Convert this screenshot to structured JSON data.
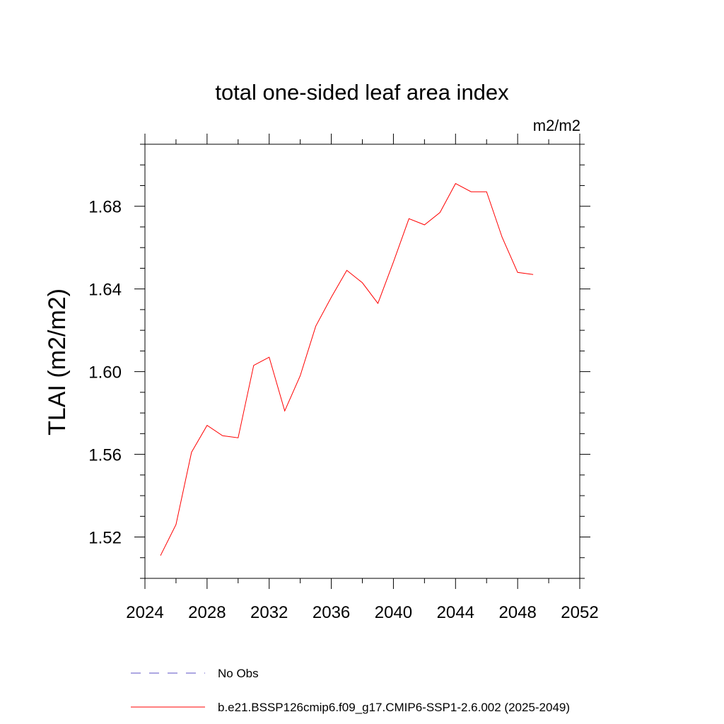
{
  "chart_data": {
    "type": "line",
    "title": "total one-sided leaf area index",
    "units_label": "m2/m2",
    "ylabel": "TLAI  (m2/m2)",
    "xlabel": "",
    "xlim": [
      2024,
      2052
    ],
    "ylim": [
      1.5,
      1.71
    ],
    "x_ticks": [
      "2024",
      "2028",
      "2032",
      "2036",
      "2040",
      "2044",
      "2048",
      "2052"
    ],
    "y_ticks": [
      "1.52",
      "1.56",
      "1.60",
      "1.64",
      "1.68"
    ],
    "grid": false,
    "legend_position": "bottom",
    "series": [
      {
        "name": "b.e21.BSSP126cmip6.f09_g17.CMIP6-SSP1-2.6.002 (2025-2049)",
        "color": "#ff0000",
        "style": "solid",
        "x": [
          2025,
          2026,
          2027,
          2028,
          2029,
          2030,
          2031,
          2032,
          2033,
          2034,
          2035,
          2036,
          2037,
          2038,
          2039,
          2040,
          2041,
          2042,
          2043,
          2044,
          2045,
          2046,
          2047,
          2048,
          2049
        ],
        "values": [
          1.511,
          1.526,
          1.561,
          1.574,
          1.569,
          1.568,
          1.603,
          1.607,
          1.581,
          1.598,
          1.622,
          1.636,
          1.649,
          1.643,
          1.633,
          1.653,
          1.674,
          1.671,
          1.677,
          1.691,
          1.687,
          1.687,
          1.665,
          1.648,
          1.647
        ]
      },
      {
        "name": "No Obs",
        "color": "#5b4fc4",
        "style": "dashed",
        "x": [],
        "values": []
      }
    ]
  }
}
